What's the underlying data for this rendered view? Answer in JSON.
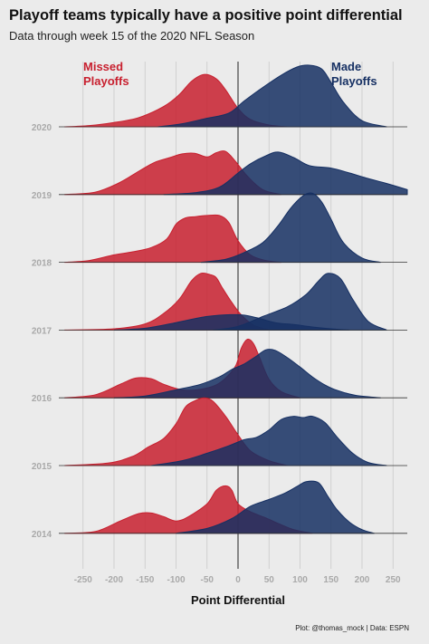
{
  "title": "Playoff teams typically have a positive point differential",
  "subtitle": "Data through week 15 of the 2020 NFL Season",
  "caption": "Plot: @thomas_mock | Data: ESPN",
  "colors": {
    "missed": "#c8202f",
    "made": "#163063",
    "background": "#ebebeb"
  },
  "chart_data": {
    "type": "ridgeline",
    "xlabel": "Point Differential",
    "xlim": [
      -275,
      275
    ],
    "x_ticks": [
      -250,
      -200,
      -150,
      -100,
      -50,
      0,
      50,
      100,
      150,
      200,
      250
    ],
    "x_tick_labels": [
      "-250",
      "-200",
      "-150",
      "-100",
      "-50",
      "0",
      "50",
      "100",
      "150",
      "200",
      "250"
    ],
    "years": [
      "2020",
      "2019",
      "2018",
      "2017",
      "2016",
      "2015",
      "2014"
    ],
    "annotations": [
      {
        "text": [
          "Missed",
          "Playoffs"
        ],
        "group": "missed"
      },
      {
        "text": [
          "Made",
          "Playoffs"
        ],
        "group": "made"
      }
    ],
    "groups": [
      "Missed Playoffs",
      "Made Playoffs"
    ],
    "series": [
      {
        "year": "2020",
        "missed": [
          [
            -280,
            0
          ],
          [
            -240,
            0.02
          ],
          [
            -200,
            0.07
          ],
          [
            -160,
            0.15
          ],
          [
            -120,
            0.33
          ],
          [
            -95,
            0.52
          ],
          [
            -75,
            0.74
          ],
          [
            -55,
            0.85
          ],
          [
            -35,
            0.78
          ],
          [
            -20,
            0.6
          ],
          [
            0,
            0.3
          ],
          [
            20,
            0.12
          ],
          [
            50,
            0.03
          ],
          [
            80,
            0
          ]
        ],
        "made": [
          [
            -130,
            0
          ],
          [
            -90,
            0.05
          ],
          [
            -50,
            0.14
          ],
          [
            -15,
            0.22
          ],
          [
            10,
            0.42
          ],
          [
            40,
            0.64
          ],
          [
            70,
            0.84
          ],
          [
            95,
            0.97
          ],
          [
            115,
            1.0
          ],
          [
            135,
            0.94
          ],
          [
            150,
            0.72
          ],
          [
            170,
            0.4
          ],
          [
            200,
            0.1
          ],
          [
            240,
            0
          ]
        ]
      },
      {
        "year": "2019",
        "missed": [
          [
            -280,
            0
          ],
          [
            -230,
            0.04
          ],
          [
            -190,
            0.2
          ],
          [
            -160,
            0.38
          ],
          [
            -135,
            0.52
          ],
          [
            -110,
            0.6
          ],
          [
            -90,
            0.66
          ],
          [
            -70,
            0.67
          ],
          [
            -50,
            0.61
          ],
          [
            -35,
            0.68
          ],
          [
            -20,
            0.7
          ],
          [
            -5,
            0.55
          ],
          [
            15,
            0.3
          ],
          [
            40,
            0.08
          ],
          [
            70,
            0
          ]
        ],
        "made": [
          [
            -120,
            0
          ],
          [
            -70,
            0.03
          ],
          [
            -30,
            0.12
          ],
          [
            0,
            0.35
          ],
          [
            20,
            0.5
          ],
          [
            45,
            0.63
          ],
          [
            65,
            0.69
          ],
          [
            90,
            0.6
          ],
          [
            115,
            0.47
          ],
          [
            150,
            0.43
          ],
          [
            180,
            0.35
          ],
          [
            210,
            0.26
          ],
          [
            240,
            0.18
          ],
          [
            275,
            0.08
          ]
        ]
      },
      {
        "year": "2018",
        "missed": [
          [
            -280,
            0
          ],
          [
            -240,
            0.03
          ],
          [
            -200,
            0.12
          ],
          [
            -170,
            0.17
          ],
          [
            -140,
            0.24
          ],
          [
            -115,
            0.38
          ],
          [
            -100,
            0.62
          ],
          [
            -85,
            0.72
          ],
          [
            -70,
            0.74
          ],
          [
            -50,
            0.76
          ],
          [
            -30,
            0.76
          ],
          [
            -15,
            0.65
          ],
          [
            0,
            0.35
          ],
          [
            20,
            0.12
          ],
          [
            45,
            0.03
          ],
          [
            70,
            0
          ]
        ],
        "made": [
          [
            -60,
            0
          ],
          [
            -20,
            0.05
          ],
          [
            10,
            0.16
          ],
          [
            40,
            0.32
          ],
          [
            65,
            0.6
          ],
          [
            85,
            0.88
          ],
          [
            105,
            1.08
          ],
          [
            120,
            1.12
          ],
          [
            135,
            0.98
          ],
          [
            150,
            0.7
          ],
          [
            170,
            0.32
          ],
          [
            200,
            0.07
          ],
          [
            230,
            0
          ]
        ]
      },
      {
        "year": "2017",
        "missed": [
          [
            -280,
            0
          ],
          [
            -200,
            0.02
          ],
          [
            -150,
            0.1
          ],
          [
            -120,
            0.27
          ],
          [
            -95,
            0.5
          ],
          [
            -75,
            0.8
          ],
          [
            -60,
            0.92
          ],
          [
            -45,
            0.9
          ],
          [
            -35,
            0.85
          ],
          [
            -25,
            0.68
          ],
          [
            -10,
            0.45
          ],
          [
            5,
            0.25
          ],
          [
            25,
            0.08
          ],
          [
            50,
            0
          ]
        ],
        "made": [
          [
            -200,
            0
          ],
          [
            -150,
            0.03
          ],
          [
            -100,
            0.12
          ],
          [
            -50,
            0.22
          ],
          [
            0,
            0.25
          ],
          [
            30,
            0.2
          ],
          [
            60,
            0.12
          ],
          [
            90,
            0.09
          ],
          [
            120,
            0.05
          ],
          [
            150,
            0.02
          ],
          [
            180,
            0
          ]
        ],
        "made2": [
          [
            -40,
            0
          ],
          [
            0,
            0.06
          ],
          [
            40,
            0.22
          ],
          [
            80,
            0.38
          ],
          [
            110,
            0.58
          ],
          [
            130,
            0.8
          ],
          [
            145,
            0.92
          ],
          [
            165,
            0.84
          ],
          [
            185,
            0.5
          ],
          [
            210,
            0.14
          ],
          [
            240,
            0
          ]
        ]
      },
      {
        "year": "2016",
        "missed": [
          [
            -280,
            0
          ],
          [
            -230,
            0.05
          ],
          [
            -190,
            0.22
          ],
          [
            -165,
            0.32
          ],
          [
            -140,
            0.31
          ],
          [
            -120,
            0.22
          ],
          [
            -90,
            0.13
          ],
          [
            -60,
            0.14
          ],
          [
            -30,
            0.24
          ],
          [
            -5,
            0.5
          ],
          [
            5,
            0.8
          ],
          [
            15,
            0.95
          ],
          [
            25,
            0.88
          ],
          [
            35,
            0.65
          ],
          [
            50,
            0.3
          ],
          [
            70,
            0.1
          ],
          [
            100,
            0
          ]
        ],
        "made": [
          [
            -200,
            0
          ],
          [
            -150,
            0.03
          ],
          [
            -100,
            0.13
          ],
          [
            -60,
            0.22
          ],
          [
            -30,
            0.34
          ],
          [
            -10,
            0.46
          ],
          [
            10,
            0.55
          ],
          [
            30,
            0.68
          ],
          [
            45,
            0.78
          ],
          [
            60,
            0.77
          ],
          [
            80,
            0.65
          ],
          [
            100,
            0.5
          ],
          [
            120,
            0.34
          ],
          [
            140,
            0.21
          ],
          [
            160,
            0.12
          ],
          [
            190,
            0.04
          ],
          [
            230,
            0
          ]
        ]
      },
      {
        "year": "2015",
        "missed": [
          [
            -280,
            0
          ],
          [
            -210,
            0.04
          ],
          [
            -170,
            0.15
          ],
          [
            -145,
            0.3
          ],
          [
            -120,
            0.44
          ],
          [
            -100,
            0.68
          ],
          [
            -85,
            0.95
          ],
          [
            -70,
            1.05
          ],
          [
            -55,
            1.1
          ],
          [
            -40,
            1.04
          ],
          [
            -20,
            0.8
          ],
          [
            0,
            0.5
          ],
          [
            20,
            0.24
          ],
          [
            50,
            0.08
          ],
          [
            80,
            0
          ]
        ],
        "made": [
          [
            -140,
            0
          ],
          [
            -90,
            0.08
          ],
          [
            -50,
            0.2
          ],
          [
            -15,
            0.32
          ],
          [
            10,
            0.42
          ],
          [
            30,
            0.46
          ],
          [
            50,
            0.58
          ],
          [
            70,
            0.75
          ],
          [
            90,
            0.8
          ],
          [
            105,
            0.78
          ],
          [
            120,
            0.8
          ],
          [
            140,
            0.7
          ],
          [
            160,
            0.46
          ],
          [
            185,
            0.2
          ],
          [
            210,
            0.05
          ],
          [
            240,
            0
          ]
        ]
      },
      {
        "year": "2014",
        "missed": [
          [
            -280,
            0
          ],
          [
            -230,
            0.03
          ],
          [
            -190,
            0.2
          ],
          [
            -160,
            0.32
          ],
          [
            -140,
            0.33
          ],
          [
            -120,
            0.27
          ],
          [
            -100,
            0.2
          ],
          [
            -80,
            0.27
          ],
          [
            -50,
            0.48
          ],
          [
            -35,
            0.7
          ],
          [
            -20,
            0.77
          ],
          [
            -10,
            0.7
          ],
          [
            0,
            0.48
          ],
          [
            20,
            0.35
          ],
          [
            45,
            0.25
          ],
          [
            65,
            0.16
          ],
          [
            90,
            0.06
          ],
          [
            120,
            0
          ]
        ],
        "made": [
          [
            -100,
            0
          ],
          [
            -50,
            0.08
          ],
          [
            -10,
            0.24
          ],
          [
            20,
            0.44
          ],
          [
            50,
            0.55
          ],
          [
            75,
            0.65
          ],
          [
            95,
            0.76
          ],
          [
            110,
            0.84
          ],
          [
            130,
            0.82
          ],
          [
            145,
            0.6
          ],
          [
            160,
            0.38
          ],
          [
            180,
            0.18
          ],
          [
            200,
            0.06
          ],
          [
            220,
            0
          ]
        ]
      }
    ]
  }
}
